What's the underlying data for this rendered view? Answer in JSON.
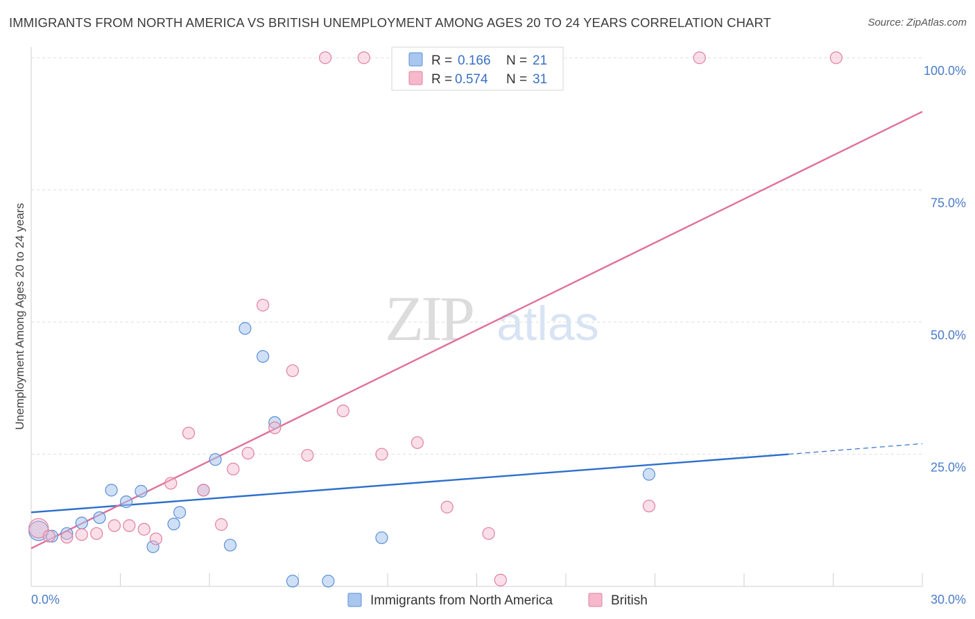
{
  "title": "IMMIGRANTS FROM NORTH AMERICA VS BRITISH UNEMPLOYMENT AMONG AGES 20 TO 24 YEARS CORRELATION CHART",
  "source": "Source: ZipAtlas.com",
  "watermark": {
    "zip": "ZIP",
    "atlas": "atlas"
  },
  "legend": {
    "rows": [
      {
        "r_label": "R =",
        "r_value": "0.166",
        "n_label": "N =",
        "n_value": "21",
        "color": "#a8c6ee",
        "stroke": "#5a8fd6"
      },
      {
        "r_label": "R =",
        "r_value": "0.574",
        "n_label": "N =",
        "n_value": "31",
        "color": "#f7b8cc",
        "stroke": "#e07f9f"
      }
    ]
  },
  "chart_data": {
    "type": "scatter",
    "title": "IMMIGRANTS FROM NORTH AMERICA VS BRITISH UNEMPLOYMENT AMONG AGES 20 TO 24 YEARS CORRELATION CHART",
    "xlabel": "",
    "ylabel": "Unemployment Among Ages 20 to 24 years",
    "xlim": [
      0,
      30
    ],
    "ylim": [
      0,
      102
    ],
    "x_tick_labels": [
      "0.0%",
      "30.0%"
    ],
    "y_ticks": [
      25,
      50,
      75,
      100
    ],
    "y_tick_labels": [
      "25.0%",
      "50.0%",
      "75.0%",
      "100.0%"
    ],
    "grid": true,
    "legend_position": "top-center",
    "series": [
      {
        "name": "Immigrants from North America",
        "color": "#a8c6ee",
        "stroke": "#5a8fd6",
        "line_color": "#2d6fcc",
        "points": [
          [
            0.25,
            10.5
          ],
          [
            0.7,
            9.5
          ],
          [
            1.2,
            10.0
          ],
          [
            1.7,
            12.0
          ],
          [
            2.3,
            13.0
          ],
          [
            2.7,
            18.2
          ],
          [
            3.2,
            16.0
          ],
          [
            3.7,
            18.0
          ],
          [
            4.1,
            7.5
          ],
          [
            4.8,
            11.8
          ],
          [
            5.0,
            14.0
          ],
          [
            5.8,
            18.2
          ],
          [
            6.2,
            24.0
          ],
          [
            6.7,
            7.8
          ],
          [
            7.2,
            48.8
          ],
          [
            7.8,
            43.5
          ],
          [
            8.2,
            31.0
          ],
          [
            8.8,
            1.0
          ],
          [
            10.0,
            1.0
          ],
          [
            11.8,
            9.2
          ],
          [
            20.8,
            21.2
          ]
        ],
        "trend": {
          "x0": 0,
          "y0": 14.0,
          "x1": 25.5,
          "y1": 25.0,
          "dash_x1": 30,
          "dash_y1": 27.0
        }
      },
      {
        "name": "British",
        "color": "#f7b8cc",
        "stroke": "#e07f9f",
        "line_color": "#e0709a",
        "points": [
          [
            0.25,
            11.0
          ],
          [
            0.6,
            9.5
          ],
          [
            1.2,
            9.3
          ],
          [
            1.7,
            9.8
          ],
          [
            2.2,
            10.0
          ],
          [
            2.8,
            11.5
          ],
          [
            3.3,
            11.5
          ],
          [
            3.8,
            10.8
          ],
          [
            4.2,
            9.0
          ],
          [
            4.7,
            19.5
          ],
          [
            5.3,
            29.0
          ],
          [
            5.8,
            18.2
          ],
          [
            6.4,
            11.7
          ],
          [
            6.8,
            22.2
          ],
          [
            7.3,
            25.2
          ],
          [
            7.8,
            53.2
          ],
          [
            8.2,
            30.0
          ],
          [
            8.8,
            40.8
          ],
          [
            9.3,
            24.8
          ],
          [
            9.9,
            100.0
          ],
          [
            10.5,
            33.2
          ],
          [
            11.2,
            100.0
          ],
          [
            11.8,
            25.0
          ],
          [
            13.0,
            27.2
          ],
          [
            14.0,
            15.0
          ],
          [
            15.4,
            10.0
          ],
          [
            15.8,
            1.2
          ],
          [
            16.8,
            100.0
          ],
          [
            20.8,
            15.2
          ],
          [
            22.5,
            100.0
          ],
          [
            27.1,
            100.0
          ]
        ],
        "trend": {
          "x0": 0,
          "y0": 7.2,
          "x1": 30,
          "y1": 89.8
        }
      }
    ]
  }
}
